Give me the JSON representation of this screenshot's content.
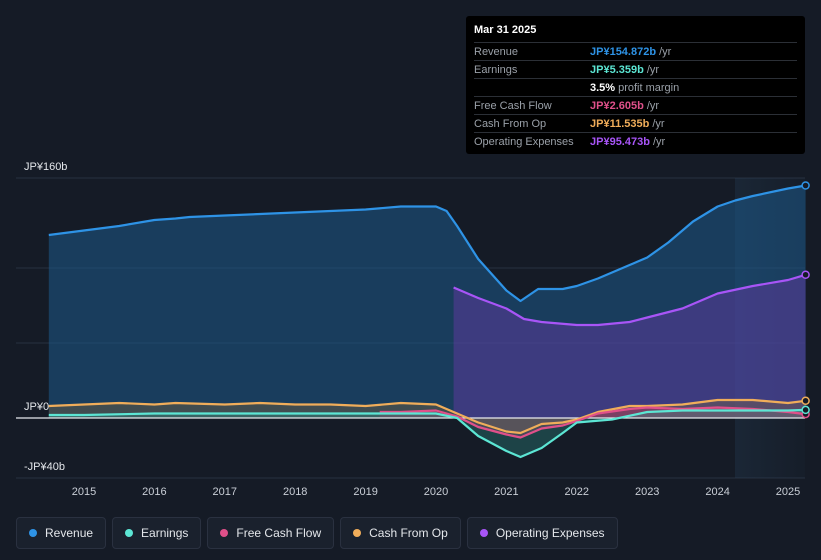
{
  "tooltip": {
    "date": "Mar 31 2025",
    "rows": [
      {
        "label": "Revenue",
        "value": "JP¥154.872b",
        "suffix": "/yr",
        "color": "#2e93e6"
      },
      {
        "label": "Earnings",
        "value": "JP¥5.359b",
        "suffix": "/yr",
        "color": "#5ce6d4"
      },
      {
        "label": "",
        "value": "3.5%",
        "suffix": "profit margin",
        "color": "#ffffff"
      },
      {
        "label": "Free Cash Flow",
        "value": "JP¥2.605b",
        "suffix": "/yr",
        "color": "#e0508a"
      },
      {
        "label": "Cash From Op",
        "value": "JP¥11.535b",
        "suffix": "/yr",
        "color": "#f0ad5a"
      },
      {
        "label": "Operating Expenses",
        "value": "JP¥95.473b",
        "suffix": "/yr",
        "color": "#a855f7"
      }
    ]
  },
  "chart_data": {
    "type": "area",
    "y_axis_labels": [
      "JP¥160b",
      "JP¥0",
      "-JP¥40b"
    ],
    "ylim": [
      -40,
      160
    ],
    "xlim": [
      2014.5,
      2025.25
    ],
    "categories": [
      "2015",
      "2016",
      "2017",
      "2018",
      "2019",
      "2020",
      "2021",
      "2022",
      "2023",
      "2024",
      "2025"
    ],
    "series": [
      {
        "name": "Revenue",
        "color": "#2e93e6",
        "x": [
          2014.5,
          2015.0,
          2015.5,
          2016.0,
          2016.3,
          2016.5,
          2017.0,
          2017.5,
          2018.0,
          2018.5,
          2019.0,
          2019.5,
          2020.0,
          2020.15,
          2020.3,
          2020.6,
          2021.0,
          2021.2,
          2021.45,
          2021.8,
          2022.0,
          2022.3,
          2022.75,
          2023.0,
          2023.3,
          2023.65,
          2024.0,
          2024.25,
          2024.5,
          2025.0,
          2025.25
        ],
        "values": [
          122,
          125,
          128,
          132,
          133,
          134,
          135,
          136,
          137,
          138,
          139,
          141,
          141,
          138,
          128,
          106,
          85,
          78,
          86,
          86,
          88,
          93,
          102,
          107,
          117,
          131,
          141,
          145,
          148,
          153,
          155
        ]
      },
      {
        "name": "Earnings",
        "color": "#5ce6d4",
        "x": [
          2014.5,
          2015.0,
          2016.0,
          2017.0,
          2018.0,
          2019.0,
          2020.0,
          2020.3,
          2020.6,
          2021.0,
          2021.2,
          2021.5,
          2021.8,
          2022.0,
          2022.5,
          2023.0,
          2023.5,
          2024.0,
          2024.5,
          2025.0,
          2025.25
        ],
        "values": [
          2,
          2,
          3,
          3,
          3,
          3,
          3,
          0,
          -12,
          -22,
          -26,
          -20,
          -10,
          -3,
          -1,
          4,
          5,
          5,
          5,
          5,
          5.4
        ]
      },
      {
        "name": "Free Cash Flow",
        "color": "#e0508a",
        "x": [
          2019.2,
          2019.5,
          2020.0,
          2020.3,
          2020.6,
          2021.0,
          2021.2,
          2021.5,
          2021.8,
          2022.0,
          2022.3,
          2022.75,
          2023.0,
          2023.5,
          2024.0,
          2024.5,
          2025.0,
          2025.25
        ],
        "values": [
          4,
          4,
          5,
          1,
          -6,
          -11,
          -13,
          -7,
          -5,
          -2,
          3,
          6,
          7,
          6,
          7,
          6,
          4,
          2.6
        ]
      },
      {
        "name": "Cash From Op",
        "color": "#f0ad5a",
        "x": [
          2014.5,
          2015.0,
          2015.5,
          2016.0,
          2016.3,
          2017.0,
          2017.5,
          2018.0,
          2018.5,
          2019.0,
          2019.5,
          2020.0,
          2020.3,
          2020.6,
          2021.0,
          2021.2,
          2021.5,
          2021.8,
          2022.0,
          2022.3,
          2022.75,
          2023.0,
          2023.5,
          2024.0,
          2024.5,
          2025.0,
          2025.25
        ],
        "values": [
          8,
          9,
          10,
          9,
          10,
          9,
          10,
          9,
          9,
          8,
          10,
          9,
          3,
          -3,
          -9,
          -10,
          -4,
          -3,
          -1,
          4,
          8,
          8,
          9,
          12,
          12,
          10,
          11.5
        ]
      },
      {
        "name": "Operating Expenses",
        "color": "#a855f7",
        "x": [
          2020.25,
          2020.6,
          2021.0,
          2021.25,
          2021.5,
          2022.0,
          2022.3,
          2022.75,
          2023.0,
          2023.5,
          2024.0,
          2024.5,
          2025.0,
          2025.25
        ],
        "values": [
          87,
          80,
          73,
          66,
          64,
          62,
          62,
          64,
          67,
          73,
          83,
          88,
          92,
          95.5
        ]
      }
    ],
    "legend": [
      "Revenue",
      "Earnings",
      "Free Cash Flow",
      "Cash From Op",
      "Operating Expenses"
    ]
  }
}
